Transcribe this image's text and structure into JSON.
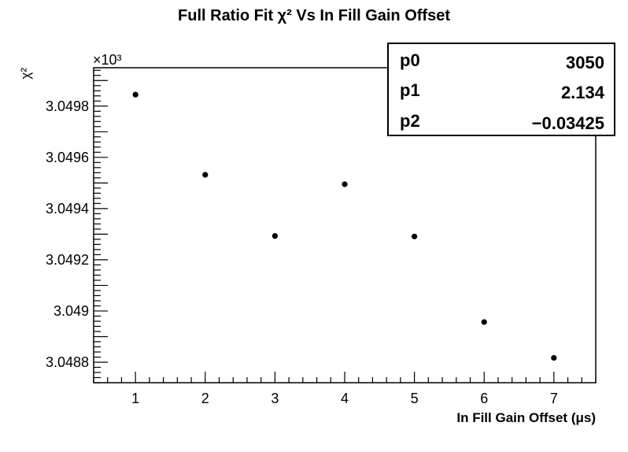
{
  "chart_data": {
    "type": "scatter",
    "title": "Full Ratio Fit χ² Vs In Fill Gain Offset",
    "xlabel": "In Fill Gain Offset (μs)",
    "ylabel": "χ²",
    "y_multiplier": "×10³",
    "xlim": [
      0.4,
      7.6
    ],
    "ylim": [
      3048.72,
      3049.95
    ],
    "x_ticks": [
      1,
      2,
      3,
      4,
      5,
      6,
      7
    ],
    "y_ticks": [
      3048.8,
      3049.0,
      3049.2,
      3049.4,
      3049.6,
      3049.8
    ],
    "y_tick_labels": [
      "3.0488",
      "3.049",
      "3.0492",
      "3.0494",
      "3.0496",
      "3.0498"
    ],
    "series": [
      {
        "type": "scatter",
        "color": "#000000",
        "points": [
          {
            "x": 1,
            "y": 3049.845
          },
          {
            "x": 2,
            "y": 3049.532
          },
          {
            "x": 3,
            "y": 3049.293
          },
          {
            "x": 4,
            "y": 3049.495
          },
          {
            "x": 5,
            "y": 3049.291
          },
          {
            "x": 6,
            "y": 3048.957
          },
          {
            "x": 7,
            "y": 3048.817
          }
        ]
      },
      {
        "type": "fit",
        "color": "#e8211e",
        "model": "p0 + p1*x + p2*x^2",
        "params": {
          "p0": 3050,
          "p1": 2.134,
          "p2": -0.03425
        }
      }
    ],
    "stats_box": [
      {
        "key": "p0",
        "value": "3050"
      },
      {
        "key": "p1",
        "value": "2.134"
      },
      {
        "key": "p2",
        "value": "−0.03425"
      }
    ],
    "grid": false
  }
}
